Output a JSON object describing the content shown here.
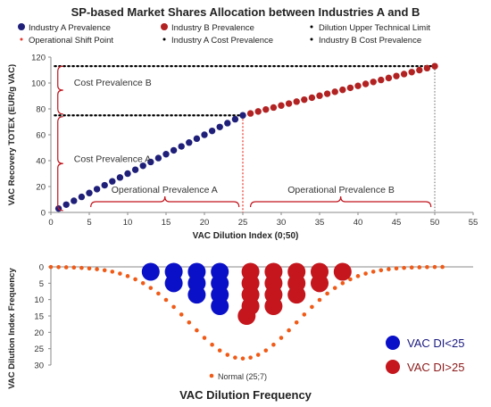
{
  "colors": {
    "industry_a": "#1f1f7a",
    "industry_b": "#b22222",
    "shift_line": "#e8362a",
    "limit_line": "#000000",
    "brace": "#c0141c",
    "normal_dots": "#f05a16",
    "di_lt_25": "#0a10c8",
    "di_gt_25": "#c4161c",
    "axis": "#888888"
  },
  "chart_data": [
    {
      "type": "scatter",
      "title": "SP-based Market Shares Allocation between Industries A and B",
      "xlabel": "VAC Dilution Index (0;50)",
      "ylabel": "VAC Recovery TOTEX (EUR/g VAC)",
      "xlim": [
        0,
        55
      ],
      "ylim": [
        0,
        120
      ],
      "xticks": [
        0,
        5,
        10,
        15,
        20,
        25,
        30,
        35,
        40,
        45,
        50,
        55
      ],
      "yticks": [
        0,
        20,
        40,
        60,
        80,
        100,
        120
      ],
      "legend": [
        {
          "label": "Industry A Prevalence",
          "marker": "circle",
          "series": "industry_a"
        },
        {
          "label": "Industry B Prevalence",
          "marker": "circle",
          "series": "industry_b"
        },
        {
          "label": "Dilution Upper Technical Limit",
          "marker": "dotted-line",
          "series": "limit"
        },
        {
          "label": "Operational Shift Point",
          "marker": "dotted-line",
          "series": "shift"
        },
        {
          "label": "Industry A Cost Prevalence",
          "marker": "dotted-line",
          "series": "a_cost"
        },
        {
          "label": "Industry B Cost Prevalence",
          "marker": "dotted-line",
          "series": "b_cost"
        }
      ],
      "series": [
        {
          "name": "Industry A Prevalence",
          "x_start": 1,
          "x_end": 25,
          "y_start": 3,
          "y_end": 75
        },
        {
          "name": "Industry B Prevalence",
          "x_start": 26,
          "x_end": 50,
          "y_start": 76.5,
          "y_end": 113
        }
      ],
      "reference_lines": {
        "operational_shift_point_x": 25,
        "dilution_upper_technical_limit_x": 50,
        "industry_a_cost_prevalence_y": 75,
        "industry_b_cost_prevalence_y": 113
      },
      "annotations": {
        "cost_prevalence_b": "Cost Prevalence B",
        "cost_prevalence_a": "Cost Prevalence A",
        "operational_prevalence_a": "Operational Prevalence A",
        "operational_prevalence_b": "Operational Prevalence B"
      }
    },
    {
      "type": "scatter",
      "title": "VAC Dilution Frequency",
      "ylabel": "VAC Dilution Index Frequency",
      "xlim": [
        0,
        55
      ],
      "ylim": [
        0,
        30
      ],
      "y_inverted": true,
      "yticks": [
        0,
        5,
        10,
        15,
        20,
        25,
        30
      ],
      "normal_series": {
        "name": "Normal (25;7)",
        "mean": 25,
        "sd": 7,
        "peak": 28,
        "x_start": 0,
        "x_end": 51
      },
      "frequency_counts": [
        {
          "x": 13,
          "y": 1.5
        },
        {
          "x": 16,
          "y": 1.5
        },
        {
          "x": 19,
          "y": 1.5
        },
        {
          "x": 22,
          "y": 1.5
        },
        {
          "x": 26,
          "y": 1.5
        },
        {
          "x": 29,
          "y": 1.5
        },
        {
          "x": 32,
          "y": 1.5
        },
        {
          "x": 35,
          "y": 1.5
        },
        {
          "x": 38,
          "y": 1.5
        },
        {
          "x": 16,
          "y": 5
        },
        {
          "x": 19,
          "y": 5
        },
        {
          "x": 22,
          "y": 5
        },
        {
          "x": 26,
          "y": 5
        },
        {
          "x": 29,
          "y": 5
        },
        {
          "x": 32,
          "y": 5
        },
        {
          "x": 35,
          "y": 5
        },
        {
          "x": 19,
          "y": 8.5
        },
        {
          "x": 22,
          "y": 8.5
        },
        {
          "x": 26,
          "y": 8.5
        },
        {
          "x": 29,
          "y": 8.5
        },
        {
          "x": 32,
          "y": 8.5
        },
        {
          "x": 22,
          "y": 12
        },
        {
          "x": 26,
          "y": 12
        },
        {
          "x": 29,
          "y": 12
        },
        {
          "x": 25.5,
          "y": 15
        }
      ],
      "class_legend": [
        {
          "label": "VAC DI<25",
          "series": "di_lt_25"
        },
        {
          "label": "VAC DI>25",
          "series": "di_gt_25"
        }
      ]
    }
  ]
}
